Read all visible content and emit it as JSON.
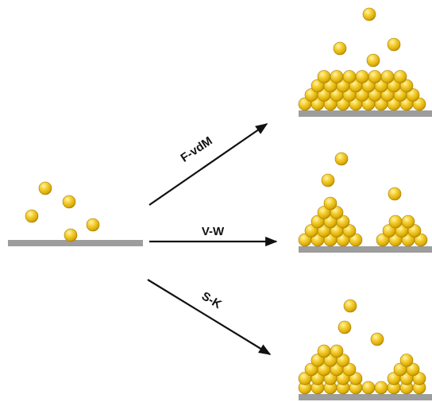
{
  "labels": {
    "fvdm": "F-vdM",
    "vw": "V-W",
    "sk": "S-K"
  },
  "colors": {
    "atom_fill": "#f0c020",
    "atom_highlight": "#fff6b0",
    "atom_shadow": "#9a7400",
    "substrate": "#9d9d9d",
    "arrow": "#111111"
  }
}
